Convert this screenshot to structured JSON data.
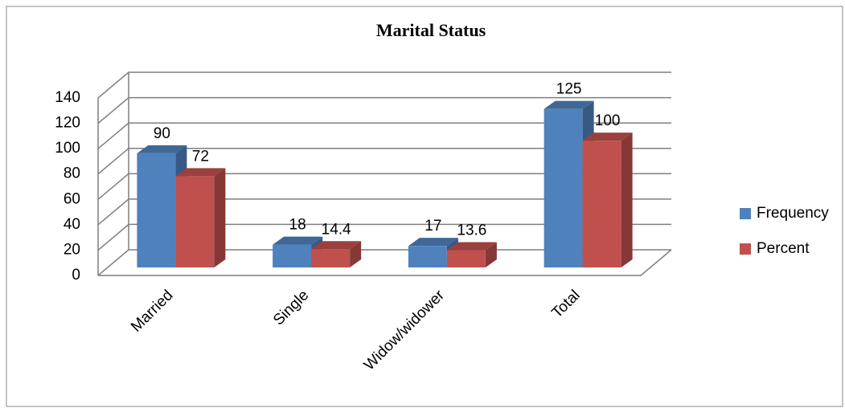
{
  "chart_data": {
    "type": "bar3d",
    "title": "Marital Status",
    "categories": [
      "Married",
      "Single",
      "Widow/widower",
      "Total"
    ],
    "series": [
      {
        "name": "Frequency",
        "color": "#4f81bd",
        "values": [
          90,
          18,
          17,
          125
        ]
      },
      {
        "name": "Percent",
        "color": "#c0504d",
        "values": [
          72,
          14.4,
          13.6,
          100
        ]
      }
    ],
    "ylim": [
      0,
      140
    ],
    "yticks": [
      0,
      20,
      40,
      60,
      80,
      100,
      120,
      140
    ],
    "grid": true,
    "legend": "right"
  }
}
